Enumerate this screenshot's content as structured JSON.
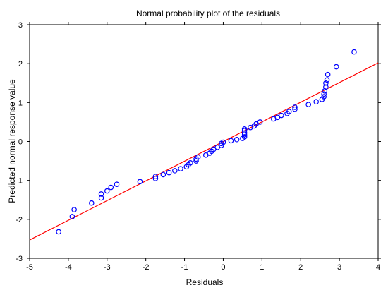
{
  "chart_data": {
    "type": "scatter",
    "title": "Normal probability plot of the residuals",
    "xlabel": "Residuals",
    "ylabel": "Predicted normal response value",
    "xlim": [
      -5,
      4
    ],
    "ylim": [
      -3,
      3
    ],
    "xticks": [
      -5,
      -4,
      -3,
      -2,
      -1,
      0,
      1,
      2,
      3,
      4
    ],
    "yticks": [
      -3,
      -2,
      -1,
      0,
      1,
      2,
      3
    ],
    "grid": false,
    "marker": "open-circle",
    "marker_color": "#0000ff",
    "line_color": "#ff0000",
    "reference_line": {
      "x": [
        -5,
        4
      ],
      "y": [
        -2.53,
        2.02
      ]
    },
    "series": [
      {
        "points": [
          [
            -4.25,
            -2.32
          ],
          [
            -3.9,
            -1.93
          ],
          [
            -3.85,
            -1.75
          ],
          [
            -3.4,
            -1.58
          ],
          [
            -3.15,
            -1.45
          ],
          [
            -3.15,
            -1.35
          ],
          [
            -3.0,
            -1.27
          ],
          [
            -2.9,
            -1.18
          ],
          [
            -2.75,
            -1.1
          ],
          [
            -2.15,
            -1.03
          ],
          [
            -1.75,
            -0.95
          ],
          [
            -1.75,
            -0.9
          ],
          [
            -1.55,
            -0.85
          ],
          [
            -1.4,
            -0.8
          ],
          [
            -1.25,
            -0.75
          ],
          [
            -1.1,
            -0.7
          ],
          [
            -0.95,
            -0.65
          ],
          [
            -0.9,
            -0.6
          ],
          [
            -0.85,
            -0.55
          ],
          [
            -0.7,
            -0.5
          ],
          [
            -0.7,
            -0.45
          ],
          [
            -0.65,
            -0.4
          ],
          [
            -0.45,
            -0.35
          ],
          [
            -0.35,
            -0.3
          ],
          [
            -0.3,
            -0.25
          ],
          [
            -0.25,
            -0.2
          ],
          [
            -0.15,
            -0.15
          ],
          [
            -0.05,
            -0.1
          ],
          [
            -0.05,
            -0.05
          ],
          [
            0.0,
            -0.02
          ],
          [
            0.2,
            0.02
          ],
          [
            0.35,
            0.05
          ],
          [
            0.5,
            0.08
          ],
          [
            0.55,
            0.12
          ],
          [
            0.55,
            0.17
          ],
          [
            0.55,
            0.22
          ],
          [
            0.55,
            0.28
          ],
          [
            0.55,
            0.32
          ],
          [
            0.7,
            0.36
          ],
          [
            0.8,
            0.4
          ],
          [
            0.85,
            0.45
          ],
          [
            0.95,
            0.5
          ],
          [
            1.3,
            0.58
          ],
          [
            1.4,
            0.62
          ],
          [
            1.5,
            0.67
          ],
          [
            1.65,
            0.72
          ],
          [
            1.7,
            0.77
          ],
          [
            1.85,
            0.83
          ],
          [
            1.85,
            0.88
          ],
          [
            2.2,
            0.95
          ],
          [
            2.4,
            1.02
          ],
          [
            2.55,
            1.08
          ],
          [
            2.6,
            1.15
          ],
          [
            2.6,
            1.22
          ],
          [
            2.62,
            1.3
          ],
          [
            2.65,
            1.4
          ],
          [
            2.65,
            1.5
          ],
          [
            2.68,
            1.58
          ],
          [
            2.7,
            1.72
          ],
          [
            2.92,
            1.92
          ],
          [
            3.38,
            2.3
          ]
        ]
      }
    ]
  }
}
